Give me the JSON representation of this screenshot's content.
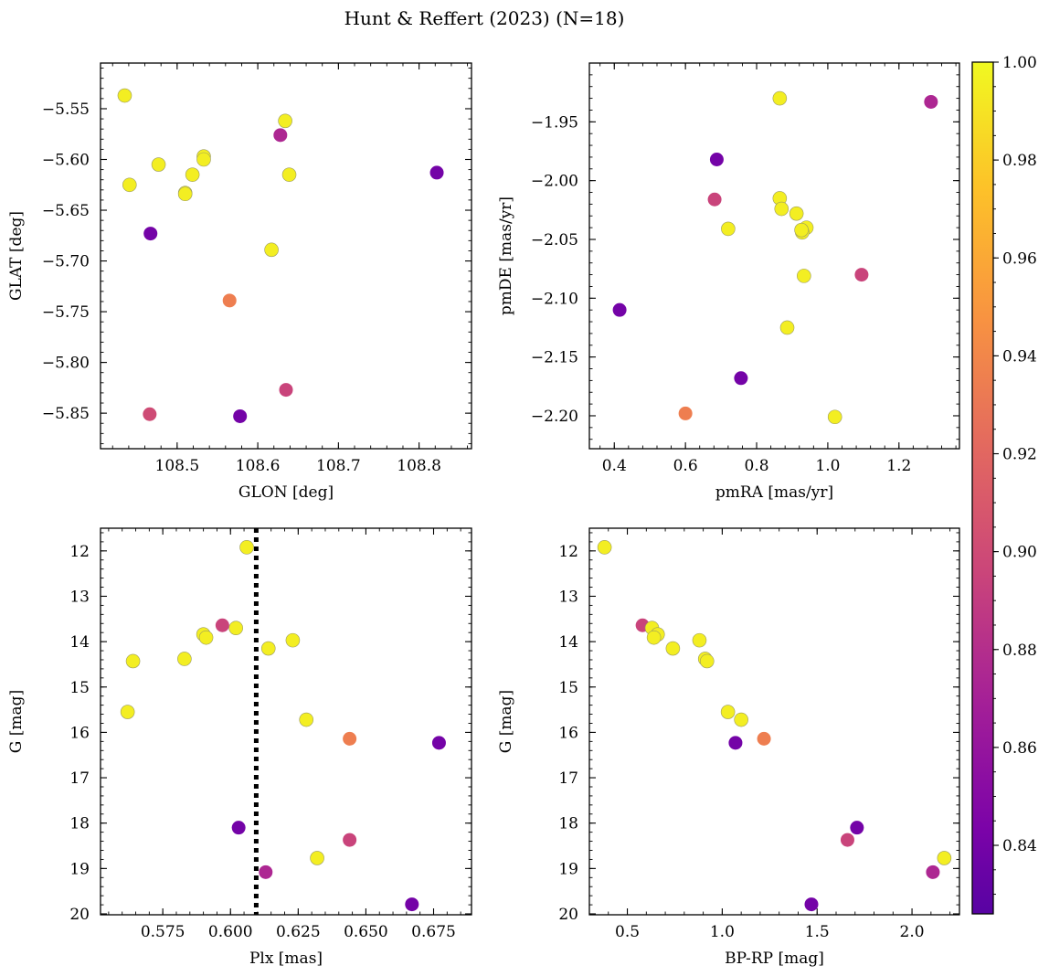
{
  "figure": {
    "title": "Hunt & Reffert (2023) (N=18)"
  },
  "chart_data": [
    {
      "type": "scatter",
      "xlabel": "GLON [deg]",
      "ylabel": "GLAT [deg]",
      "xlim": [
        108.405,
        108.865
      ],
      "ylim": [
        -5.885,
        -5.505
      ],
      "xticks": [
        108.5,
        108.6,
        108.7,
        108.8
      ],
      "xtick_labels": [
        "108.5",
        "108.6",
        "108.7",
        "108.8"
      ],
      "yticks": [
        -5.55,
        -5.6,
        -5.65,
        -5.7,
        -5.75,
        -5.8,
        -5.85
      ],
      "ytick_labels": [
        "−5.55",
        "−5.60",
        "−5.65",
        "−5.70",
        "−5.75",
        "−5.80",
        "−5.85"
      ],
      "points": [
        {
          "x": 108.435,
          "y": -5.537,
          "c": 0.995
        },
        {
          "x": 108.634,
          "y": -5.562,
          "c": 0.995
        },
        {
          "x": 108.628,
          "y": -5.576,
          "c": 0.875
        },
        {
          "x": 108.533,
          "y": -5.597,
          "c": 0.995
        },
        {
          "x": 108.533,
          "y": -5.6,
          "c": 0.995
        },
        {
          "x": 108.477,
          "y": -5.605,
          "c": 0.995
        },
        {
          "x": 108.822,
          "y": -5.613,
          "c": 0.84
        },
        {
          "x": 108.519,
          "y": -5.615,
          "c": 0.995
        },
        {
          "x": 108.639,
          "y": -5.615,
          "c": 0.995
        },
        {
          "x": 108.441,
          "y": -5.625,
          "c": 0.995
        },
        {
          "x": 108.51,
          "y": -5.633,
          "c": 0.995
        },
        {
          "x": 108.51,
          "y": -5.634,
          "c": 0.995
        },
        {
          "x": 108.467,
          "y": -5.673,
          "c": 0.84
        },
        {
          "x": 108.617,
          "y": -5.689,
          "c": 0.995
        },
        {
          "x": 108.565,
          "y": -5.739,
          "c": 0.935
        },
        {
          "x": 108.635,
          "y": -5.827,
          "c": 0.895
        },
        {
          "x": 108.466,
          "y": -5.851,
          "c": 0.9
        },
        {
          "x": 108.578,
          "y": -5.853,
          "c": 0.84
        }
      ]
    },
    {
      "type": "scatter",
      "xlabel": "pmRA [mas/yr]",
      "ylabel": "pmDE [mas/yr]",
      "xlim": [
        0.33,
        1.37
      ],
      "ylim": [
        -2.228,
        -1.9
      ],
      "xticks": [
        0.4,
        0.6,
        0.8,
        1.0,
        1.2
      ],
      "xtick_labels": [
        "0.4",
        "0.6",
        "0.8",
        "1.0",
        "1.2"
      ],
      "yticks": [
        -1.95,
        -2.0,
        -2.05,
        -2.1,
        -2.15,
        -2.2
      ],
      "ytick_labels": [
        "−1.95",
        "−2.00",
        "−2.05",
        "−2.10",
        "−2.15",
        "−2.20"
      ],
      "points": [
        {
          "x": 0.865,
          "y": -1.93,
          "c": 0.995
        },
        {
          "x": 1.29,
          "y": -1.933,
          "c": 0.875
        },
        {
          "x": 0.688,
          "y": -1.982,
          "c": 0.84
        },
        {
          "x": 0.865,
          "y": -2.015,
          "c": 0.995
        },
        {
          "x": 0.682,
          "y": -2.016,
          "c": 0.895
        },
        {
          "x": 0.87,
          "y": -2.024,
          "c": 0.995
        },
        {
          "x": 0.912,
          "y": -2.028,
          "c": 0.995
        },
        {
          "x": 0.94,
          "y": -2.04,
          "c": 0.995
        },
        {
          "x": 0.72,
          "y": -2.041,
          "c": 0.995
        },
        {
          "x": 0.928,
          "y": -2.044,
          "c": 0.995
        },
        {
          "x": 0.926,
          "y": -2.042,
          "c": 0.995
        },
        {
          "x": 0.933,
          "y": -2.081,
          "c": 0.995
        },
        {
          "x": 1.095,
          "y": -2.08,
          "c": 0.895
        },
        {
          "x": 0.415,
          "y": -2.11,
          "c": 0.84
        },
        {
          "x": 0.886,
          "y": -2.125,
          "c": 0.995
        },
        {
          "x": 0.756,
          "y": -2.168,
          "c": 0.84
        },
        {
          "x": 0.6,
          "y": -2.198,
          "c": 0.935
        },
        {
          "x": 1.02,
          "y": -2.201,
          "c": 0.995
        }
      ]
    },
    {
      "type": "scatter",
      "xlabel": "Plx [mas]",
      "ylabel": "G [mag]",
      "xlim": [
        0.552,
        0.689
      ],
      "ylim": [
        20.02,
        11.5
      ],
      "y_inverted": true,
      "xticks": [
        0.575,
        0.6,
        0.625,
        0.65,
        0.675
      ],
      "xtick_labels": [
        "0.575",
        "0.600",
        "0.625",
        "0.650",
        "0.675"
      ],
      "yticks": [
        12,
        13,
        14,
        15,
        16,
        17,
        18,
        19,
        20
      ],
      "ytick_labels": [
        "12",
        "13",
        "14",
        "15",
        "16",
        "17",
        "18",
        "19",
        "20"
      ],
      "vline": 0.6095,
      "points": [
        {
          "x": 0.606,
          "y": 11.92,
          "c": 0.995
        },
        {
          "x": 0.597,
          "y": 13.64,
          "c": 0.895
        },
        {
          "x": 0.602,
          "y": 13.7,
          "c": 0.995
        },
        {
          "x": 0.59,
          "y": 13.84,
          "c": 0.995
        },
        {
          "x": 0.591,
          "y": 13.91,
          "c": 0.995
        },
        {
          "x": 0.623,
          "y": 13.97,
          "c": 0.995
        },
        {
          "x": 0.614,
          "y": 14.15,
          "c": 0.995
        },
        {
          "x": 0.583,
          "y": 14.38,
          "c": 0.995
        },
        {
          "x": 0.564,
          "y": 14.43,
          "c": 0.995
        },
        {
          "x": 0.562,
          "y": 15.55,
          "c": 0.995
        },
        {
          "x": 0.628,
          "y": 15.72,
          "c": 0.995
        },
        {
          "x": 0.644,
          "y": 16.14,
          "c": 0.935
        },
        {
          "x": 0.677,
          "y": 16.23,
          "c": 0.84
        },
        {
          "x": 0.603,
          "y": 18.1,
          "c": 0.84
        },
        {
          "x": 0.644,
          "y": 18.37,
          "c": 0.895
        },
        {
          "x": 0.632,
          "y": 18.77,
          "c": 0.995
        },
        {
          "x": 0.613,
          "y": 19.08,
          "c": 0.875
        },
        {
          "x": 0.667,
          "y": 19.79,
          "c": 0.84
        }
      ]
    },
    {
      "type": "scatter",
      "xlabel": "BP-RP [mag]",
      "ylabel": "G [mag]",
      "xlim": [
        0.3,
        2.25
      ],
      "ylim": [
        20.02,
        11.5
      ],
      "y_inverted": true,
      "xticks": [
        0.5,
        1.0,
        1.5,
        2.0
      ],
      "xtick_labels": [
        "0.5",
        "1.0",
        "1.5",
        "2.0"
      ],
      "yticks": [
        12,
        13,
        14,
        15,
        16,
        17,
        18,
        19,
        20
      ],
      "ytick_labels": [
        "12",
        "13",
        "14",
        "15",
        "16",
        "17",
        "18",
        "19",
        "20"
      ],
      "points": [
        {
          "x": 0.38,
          "y": 11.92,
          "c": 0.995
        },
        {
          "x": 0.58,
          "y": 13.64,
          "c": 0.895
        },
        {
          "x": 0.63,
          "y": 13.7,
          "c": 0.995
        },
        {
          "x": 0.66,
          "y": 13.84,
          "c": 0.995
        },
        {
          "x": 0.64,
          "y": 13.91,
          "c": 0.995
        },
        {
          "x": 0.88,
          "y": 13.97,
          "c": 0.995
        },
        {
          "x": 0.74,
          "y": 14.15,
          "c": 0.995
        },
        {
          "x": 0.91,
          "y": 14.38,
          "c": 0.995
        },
        {
          "x": 0.92,
          "y": 14.43,
          "c": 0.995
        },
        {
          "x": 1.03,
          "y": 15.55,
          "c": 0.995
        },
        {
          "x": 1.1,
          "y": 15.72,
          "c": 0.995
        },
        {
          "x": 1.22,
          "y": 16.14,
          "c": 0.935
        },
        {
          "x": 1.07,
          "y": 16.23,
          "c": 0.84
        },
        {
          "x": 1.71,
          "y": 18.1,
          "c": 0.84
        },
        {
          "x": 1.66,
          "y": 18.37,
          "c": 0.895
        },
        {
          "x": 2.17,
          "y": 18.77,
          "c": 0.995
        },
        {
          "x": 2.11,
          "y": 19.08,
          "c": 0.875
        },
        {
          "x": 1.47,
          "y": 19.79,
          "c": 0.84
        }
      ]
    }
  ],
  "colorbar": {
    "colormap": "plasma",
    "vmin": 0.826,
    "vmax": 1.0,
    "ticks": [
      0.84,
      0.86,
      0.88,
      0.9,
      0.92,
      0.94,
      0.96,
      0.98,
      1.0
    ],
    "tick_labels": [
      "0.84",
      "0.86",
      "0.88",
      "0.90",
      "0.92",
      "0.94",
      "0.96",
      "0.98",
      "1.00"
    ]
  }
}
